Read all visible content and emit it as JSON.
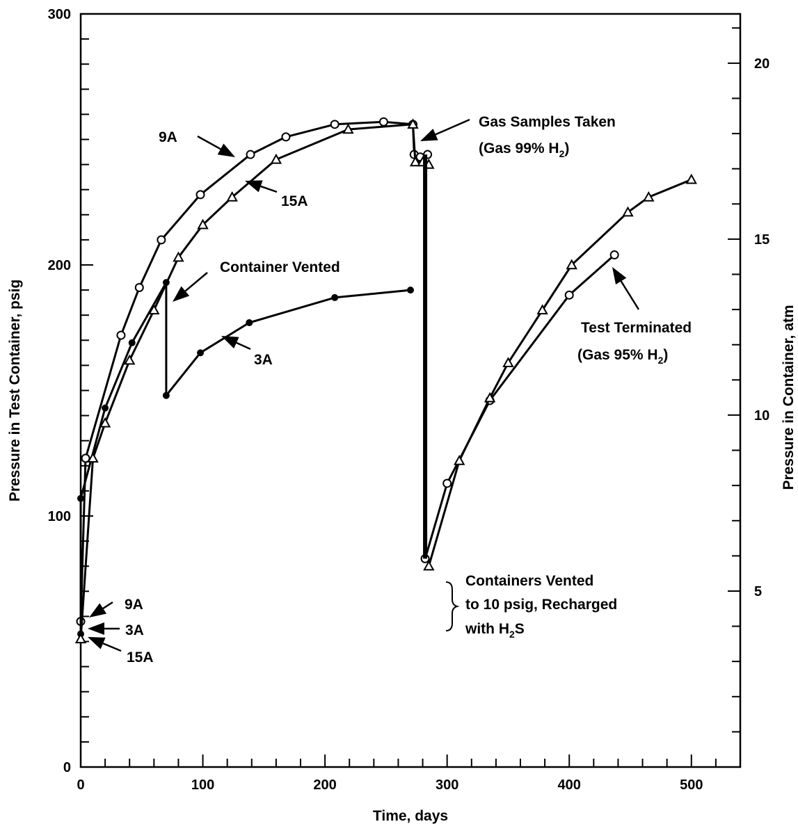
{
  "chart_data": {
    "type": "line",
    "xlabel": "Time, days",
    "ylabel": "Pressure in Test Container, psig",
    "y2label": "Pressure in Container, atm",
    "xlim": [
      0,
      540
    ],
    "ylim": [
      0,
      300
    ],
    "y2lim": [
      0,
      21.4
    ],
    "xticks": [
      "0",
      "100",
      "200",
      "300",
      "400",
      "500"
    ],
    "yticks": [
      "0",
      "100",
      "200",
      "300"
    ],
    "y2ticks": [
      "5",
      "10",
      "15",
      "20"
    ],
    "series": [
      {
        "name": "9A",
        "marker": "open-circle",
        "x": [
          0,
          4,
          33,
          48,
          66,
          98,
          139,
          168,
          208,
          248,
          272,
          273,
          278,
          284,
          282,
          300,
          335,
          400,
          437
        ],
        "y": [
          58,
          123,
          172,
          191,
          210,
          228,
          244,
          251,
          256,
          257,
          256,
          244,
          243,
          244,
          83,
          113,
          146,
          188,
          204
        ],
        "gaps_before": [
          14
        ]
      },
      {
        "name": "3A",
        "marker": "filled-circle",
        "x": [
          0,
          0,
          20,
          42,
          70,
          70,
          98,
          138,
          208,
          270
        ],
        "y": [
          53,
          107,
          143,
          169,
          193,
          148,
          165,
          177,
          187,
          190
        ]
      },
      {
        "name": "15A",
        "marker": "open-triangle",
        "x": [
          0,
          10,
          20,
          40,
          60,
          80,
          100,
          124,
          160,
          219,
          272,
          274,
          280,
          285,
          285,
          310,
          335,
          350,
          378,
          402,
          448,
          465,
          500
        ],
        "y": [
          51,
          123,
          137,
          162,
          182,
          203,
          216,
          227,
          242,
          254,
          256,
          241,
          241,
          240,
          80,
          122,
          147,
          161,
          182,
          200,
          221,
          227,
          234
        ],
        "gaps_before": [
          14
        ]
      }
    ],
    "annotations": [
      {
        "text": "9A"
      },
      {
        "text": "15A"
      },
      {
        "text": "Container Vented"
      },
      {
        "text": "3A"
      },
      {
        "text": "Gas Samples Taken"
      },
      {
        "text": "(Gas 99% H",
        "sub": "2",
        "after": ")"
      },
      {
        "text": "Test Terminated"
      },
      {
        "text": "(Gas 95% H",
        "sub": "2",
        "after": ")"
      },
      {
        "text": "Containers Vented"
      },
      {
        "text": "to 10 psig, Recharged"
      },
      {
        "text": "with H",
        "sub": "2",
        "after": "S"
      },
      {
        "text": "9A"
      },
      {
        "text": "3A"
      },
      {
        "text": "15A"
      }
    ]
  }
}
